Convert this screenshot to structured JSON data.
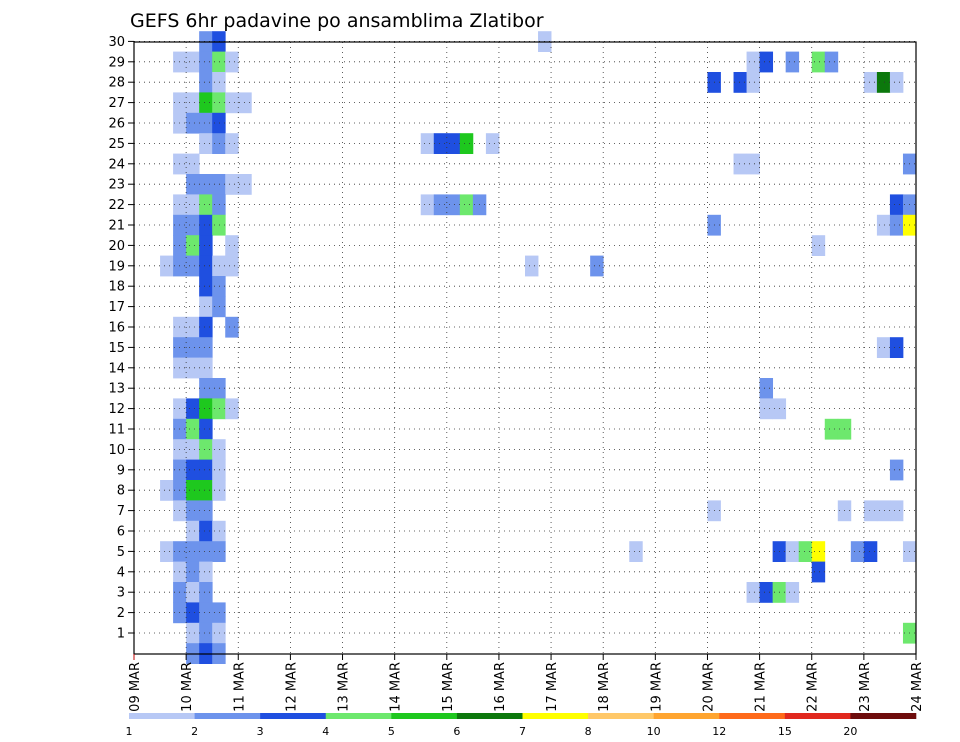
{
  "chart_data": {
    "type": "heatmap",
    "title": "GEFS 6hr padavine po ansamblima Zlatibor",
    "members": [
      1,
      2,
      3,
      4,
      5,
      6,
      7,
      8,
      9,
      10,
      11,
      12,
      13,
      14,
      15,
      16,
      17,
      18,
      19,
      20,
      21,
      22,
      23,
      24,
      25,
      26,
      27,
      28,
      29,
      30
    ],
    "time_labels": [
      "09 MAR",
      "10 MAR",
      "11 MAR",
      "12 MAR",
      "13 MAR",
      "14 MAR",
      "15 MAR",
      "16 MAR",
      "17 MAR",
      "18 MAR",
      "19 MAR",
      "20 MAR",
      "21 MAR",
      "22 MAR",
      "23 MAR",
      "24 MAR"
    ],
    "steps_per_day": 4,
    "grid": "dotted",
    "colorbar": {
      "labels": [
        "1",
        "2",
        "3",
        "4",
        "5",
        "6",
        "7",
        "8",
        "10",
        "12",
        "15",
        "20"
      ],
      "colors": [
        "#b7c8f5",
        "#6d93ec",
        "#1f4fe0",
        "#6de86d",
        "#1ec81e",
        "#0c780c",
        "#ffff00",
        "#ffc868",
        "#ffa530",
        "#ff6a1a",
        "#e1281e",
        "#6e0c0c"
      ]
    },
    "cells": [
      [
        30,
        5,
        "#6d93ec"
      ],
      [
        30,
        6,
        "#1f4fe0"
      ],
      [
        30,
        31,
        "#b7c8f5"
      ],
      [
        29,
        3,
        "#b7c8f5"
      ],
      [
        29,
        4,
        "#b7c8f5"
      ],
      [
        29,
        5,
        "#6d93ec"
      ],
      [
        29,
        6,
        "#6de86d"
      ],
      [
        29,
        7,
        "#b7c8f5"
      ],
      [
        29,
        47,
        "#b7c8f5"
      ],
      [
        29,
        48,
        "#1f4fe0"
      ],
      [
        29,
        50,
        "#6d93ec"
      ],
      [
        29,
        52,
        "#6de86d"
      ],
      [
        29,
        53,
        "#6d93ec"
      ],
      [
        28,
        5,
        "#6d93ec"
      ],
      [
        28,
        6,
        "#b7c8f5"
      ],
      [
        28,
        44,
        "#1f4fe0"
      ],
      [
        28,
        46,
        "#1f4fe0"
      ],
      [
        28,
        47,
        "#b7c8f5"
      ],
      [
        28,
        56,
        "#b7c8f5"
      ],
      [
        28,
        57,
        "#0c780c"
      ],
      [
        28,
        58,
        "#b7c8f5"
      ],
      [
        27,
        3,
        "#b7c8f5"
      ],
      [
        27,
        4,
        "#b7c8f5"
      ],
      [
        27,
        5,
        "#1ec81e"
      ],
      [
        27,
        6,
        "#6de86d"
      ],
      [
        27,
        7,
        "#b7c8f5"
      ],
      [
        27,
        8,
        "#b7c8f5"
      ],
      [
        26,
        3,
        "#b7c8f5"
      ],
      [
        26,
        4,
        "#6d93ec"
      ],
      [
        26,
        5,
        "#6d93ec"
      ],
      [
        26,
        6,
        "#1f4fe0"
      ],
      [
        25,
        5,
        "#b7c8f5"
      ],
      [
        25,
        6,
        "#6d93ec"
      ],
      [
        25,
        7,
        "#b7c8f5"
      ],
      [
        25,
        22,
        "#b7c8f5"
      ],
      [
        25,
        23,
        "#1f4fe0"
      ],
      [
        25,
        24,
        "#1f4fe0"
      ],
      [
        25,
        25,
        "#1ec81e"
      ],
      [
        25,
        27,
        "#b7c8f5"
      ],
      [
        24,
        3,
        "#b7c8f5"
      ],
      [
        24,
        4,
        "#b7c8f5"
      ],
      [
        24,
        46,
        "#b7c8f5"
      ],
      [
        24,
        47,
        "#b7c8f5"
      ],
      [
        24,
        59,
        "#6d93ec"
      ],
      [
        23,
        4,
        "#6d93ec"
      ],
      [
        23,
        5,
        "#6d93ec"
      ],
      [
        23,
        6,
        "#6d93ec"
      ],
      [
        23,
        7,
        "#b7c8f5"
      ],
      [
        23,
        8,
        "#b7c8f5"
      ],
      [
        22,
        3,
        "#b7c8f5"
      ],
      [
        22,
        4,
        "#b7c8f5"
      ],
      [
        22,
        5,
        "#6de86d"
      ],
      [
        22,
        6,
        "#6d93ec"
      ],
      [
        22,
        22,
        "#b7c8f5"
      ],
      [
        22,
        23,
        "#6d93ec"
      ],
      [
        22,
        24,
        "#6d93ec"
      ],
      [
        22,
        25,
        "#6de86d"
      ],
      [
        22,
        26,
        "#6d93ec"
      ],
      [
        22,
        58,
        "#1f4fe0"
      ],
      [
        22,
        59,
        "#6d93ec"
      ],
      [
        21,
        3,
        "#6d93ec"
      ],
      [
        21,
        4,
        "#6d93ec"
      ],
      [
        21,
        5,
        "#1f4fe0"
      ],
      [
        21,
        6,
        "#6de86d"
      ],
      [
        21,
        44,
        "#6d93ec"
      ],
      [
        21,
        57,
        "#b7c8f5"
      ],
      [
        21,
        58,
        "#6d93ec"
      ],
      [
        21,
        59,
        "#ffff00"
      ],
      [
        20,
        3,
        "#6d93ec"
      ],
      [
        20,
        4,
        "#6de86d"
      ],
      [
        20,
        5,
        "#1f4fe0"
      ],
      [
        20,
        7,
        "#b7c8f5"
      ],
      [
        20,
        52,
        "#b7c8f5"
      ],
      [
        19,
        2,
        "#b7c8f5"
      ],
      [
        19,
        3,
        "#6d93ec"
      ],
      [
        19,
        4,
        "#6d93ec"
      ],
      [
        19,
        5,
        "#1f4fe0"
      ],
      [
        19,
        6,
        "#b7c8f5"
      ],
      [
        19,
        7,
        "#b7c8f5"
      ],
      [
        19,
        30,
        "#b7c8f5"
      ],
      [
        19,
        35,
        "#6d93ec"
      ],
      [
        18,
        5,
        "#1f4fe0"
      ],
      [
        18,
        6,
        "#6d93ec"
      ],
      [
        17,
        5,
        "#b7c8f5"
      ],
      [
        17,
        6,
        "#6d93ec"
      ],
      [
        16,
        3,
        "#b7c8f5"
      ],
      [
        16,
        4,
        "#b7c8f5"
      ],
      [
        16,
        5,
        "#1f4fe0"
      ],
      [
        16,
        7,
        "#6d93ec"
      ],
      [
        15,
        3,
        "#6d93ec"
      ],
      [
        15,
        4,
        "#6d93ec"
      ],
      [
        15,
        5,
        "#6d93ec"
      ],
      [
        15,
        57,
        "#b7c8f5"
      ],
      [
        15,
        58,
        "#1f4fe0"
      ],
      [
        14,
        3,
        "#b7c8f5"
      ],
      [
        14,
        4,
        "#b7c8f5"
      ],
      [
        14,
        5,
        "#b7c8f5"
      ],
      [
        13,
        5,
        "#6d93ec"
      ],
      [
        13,
        6,
        "#6d93ec"
      ],
      [
        13,
        48,
        "#6d93ec"
      ],
      [
        12,
        3,
        "#b7c8f5"
      ],
      [
        12,
        4,
        "#1f4fe0"
      ],
      [
        12,
        5,
        "#1ec81e"
      ],
      [
        12,
        6,
        "#6de86d"
      ],
      [
        12,
        7,
        "#b7c8f5"
      ],
      [
        12,
        48,
        "#b7c8f5"
      ],
      [
        12,
        49,
        "#b7c8f5"
      ],
      [
        11,
        3,
        "#6d93ec"
      ],
      [
        11,
        4,
        "#6de86d"
      ],
      [
        11,
        5,
        "#1f4fe0"
      ],
      [
        11,
        53,
        "#6de86d"
      ],
      [
        11,
        54,
        "#6de86d"
      ],
      [
        10,
        3,
        "#b7c8f5"
      ],
      [
        10,
        4,
        "#b7c8f5"
      ],
      [
        10,
        5,
        "#6de86d"
      ],
      [
        10,
        6,
        "#b7c8f5"
      ],
      [
        9,
        3,
        "#6d93ec"
      ],
      [
        9,
        4,
        "#1f4fe0"
      ],
      [
        9,
        5,
        "#1f4fe0"
      ],
      [
        9,
        6,
        "#b7c8f5"
      ],
      [
        9,
        58,
        "#6d93ec"
      ],
      [
        8,
        2,
        "#b7c8f5"
      ],
      [
        8,
        3,
        "#6d93ec"
      ],
      [
        8,
        4,
        "#1ec81e"
      ],
      [
        8,
        5,
        "#1ec81e"
      ],
      [
        8,
        6,
        "#b7c8f5"
      ],
      [
        7,
        3,
        "#b7c8f5"
      ],
      [
        7,
        4,
        "#6d93ec"
      ],
      [
        7,
        5,
        "#6d93ec"
      ],
      [
        7,
        44,
        "#b7c8f5"
      ],
      [
        7,
        54,
        "#b7c8f5"
      ],
      [
        7,
        56,
        "#b7c8f5"
      ],
      [
        7,
        57,
        "#b7c8f5"
      ],
      [
        7,
        58,
        "#b7c8f5"
      ],
      [
        6,
        4,
        "#b7c8f5"
      ],
      [
        6,
        5,
        "#1f4fe0"
      ],
      [
        6,
        6,
        "#b7c8f5"
      ],
      [
        5,
        2,
        "#b7c8f5"
      ],
      [
        5,
        3,
        "#6d93ec"
      ],
      [
        5,
        4,
        "#6d93ec"
      ],
      [
        5,
        5,
        "#6d93ec"
      ],
      [
        5,
        6,
        "#6d93ec"
      ],
      [
        5,
        38,
        "#b7c8f5"
      ],
      [
        5,
        49,
        "#1f4fe0"
      ],
      [
        5,
        50,
        "#b7c8f5"
      ],
      [
        5,
        51,
        "#6de86d"
      ],
      [
        5,
        52,
        "#ffff00"
      ],
      [
        5,
        55,
        "#6d93ec"
      ],
      [
        5,
        56,
        "#1f4fe0"
      ],
      [
        5,
        59,
        "#b7c8f5"
      ],
      [
        4,
        3,
        "#b7c8f5"
      ],
      [
        4,
        4,
        "#6d93ec"
      ],
      [
        4,
        5,
        "#b7c8f5"
      ],
      [
        4,
        52,
        "#1f4fe0"
      ],
      [
        3,
        3,
        "#6d93ec"
      ],
      [
        3,
        4,
        "#b7c8f5"
      ],
      [
        3,
        5,
        "#6d93ec"
      ],
      [
        3,
        47,
        "#b7c8f5"
      ],
      [
        3,
        48,
        "#1f4fe0"
      ],
      [
        3,
        49,
        "#6de86d"
      ],
      [
        3,
        50,
        "#b7c8f5"
      ],
      [
        2,
        3,
        "#6d93ec"
      ],
      [
        2,
        4,
        "#1f4fe0"
      ],
      [
        2,
        5,
        "#6d93ec"
      ],
      [
        2,
        6,
        "#6d93ec"
      ],
      [
        1,
        4,
        "#b7c8f5"
      ],
      [
        1,
        5,
        "#6d93ec"
      ],
      [
        1,
        6,
        "#b7c8f5"
      ],
      [
        1,
        59,
        "#6de86d"
      ],
      [
        0,
        4,
        "#6d93ec"
      ],
      [
        0,
        5,
        "#1f4fe0"
      ],
      [
        0,
        6,
        "#6d93ec"
      ]
    ]
  }
}
